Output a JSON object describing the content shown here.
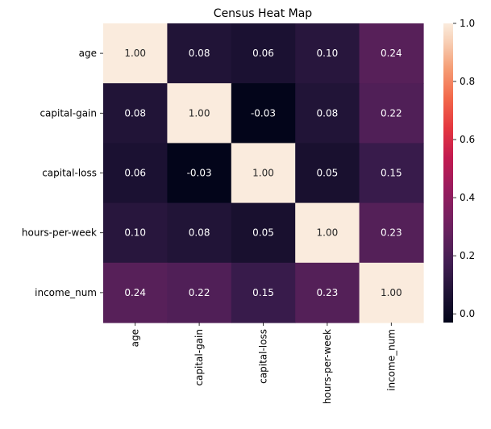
{
  "chart_data": {
    "type": "heatmap",
    "title": "Census Heat Map",
    "rows": [
      "age",
      "capital-gain",
      "capital-loss",
      "hours-per-week",
      "income_num"
    ],
    "columns": [
      "age",
      "capital-gain",
      "capital-loss",
      "hours-per-week",
      "income_num"
    ],
    "values": [
      [
        1.0,
        0.08,
        0.06,
        0.1,
        0.24
      ],
      [
        0.08,
        1.0,
        -0.03,
        0.08,
        0.22
      ],
      [
        0.06,
        -0.03,
        1.0,
        0.05,
        0.15
      ],
      [
        0.1,
        0.08,
        0.05,
        1.0,
        0.23
      ],
      [
        0.24,
        0.22,
        0.15,
        0.23,
        1.0
      ]
    ],
    "value_format": "2 decimals",
    "colorbar": {
      "colormap": "rocket",
      "range": [
        -0.03,
        1.0
      ],
      "ticks": [
        0.0,
        0.2,
        0.4,
        0.6,
        0.8,
        1.0
      ],
      "tick_labels": [
        "0.0",
        "0.2",
        "0.4",
        "0.6",
        "0.8",
        "1.0"
      ]
    }
  }
}
